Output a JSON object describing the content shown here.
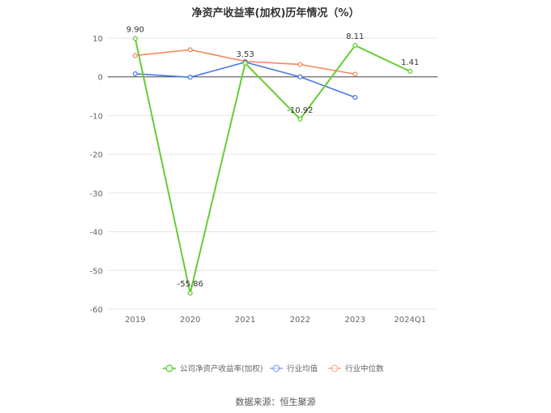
{
  "chart_data": {
    "type": "line",
    "title": "净资产收益率(加权)历年情况（%）",
    "categories": [
      "2019",
      "2020",
      "2021",
      "2022",
      "2023",
      "2024Q1"
    ],
    "ylim": [
      -60,
      10
    ],
    "yticks": [
      10,
      0,
      -10,
      -20,
      -30,
      -40,
      -50,
      -60
    ],
    "grid": true,
    "legend_position": "bottom",
    "series": [
      {
        "name": "公司净资产收益率(加权)",
        "color": "#66cc33",
        "values": [
          9.9,
          -55.86,
          3.53,
          -10.92,
          8.11,
          1.41
        ],
        "labels": [
          "9.90",
          "-55.86",
          "3.53",
          "-10.92",
          "8.11",
          "1.41"
        ]
      },
      {
        "name": "行业均值",
        "color": "#4a7be0",
        "values": [
          0.8,
          -0.1,
          3.8,
          0.0,
          -5.3,
          null
        ]
      },
      {
        "name": "行业中位数",
        "color": "#f5895f",
        "values": [
          5.5,
          7.0,
          4.0,
          3.2,
          0.7,
          null
        ]
      }
    ]
  },
  "source_text": "数据来源：恒生聚源"
}
